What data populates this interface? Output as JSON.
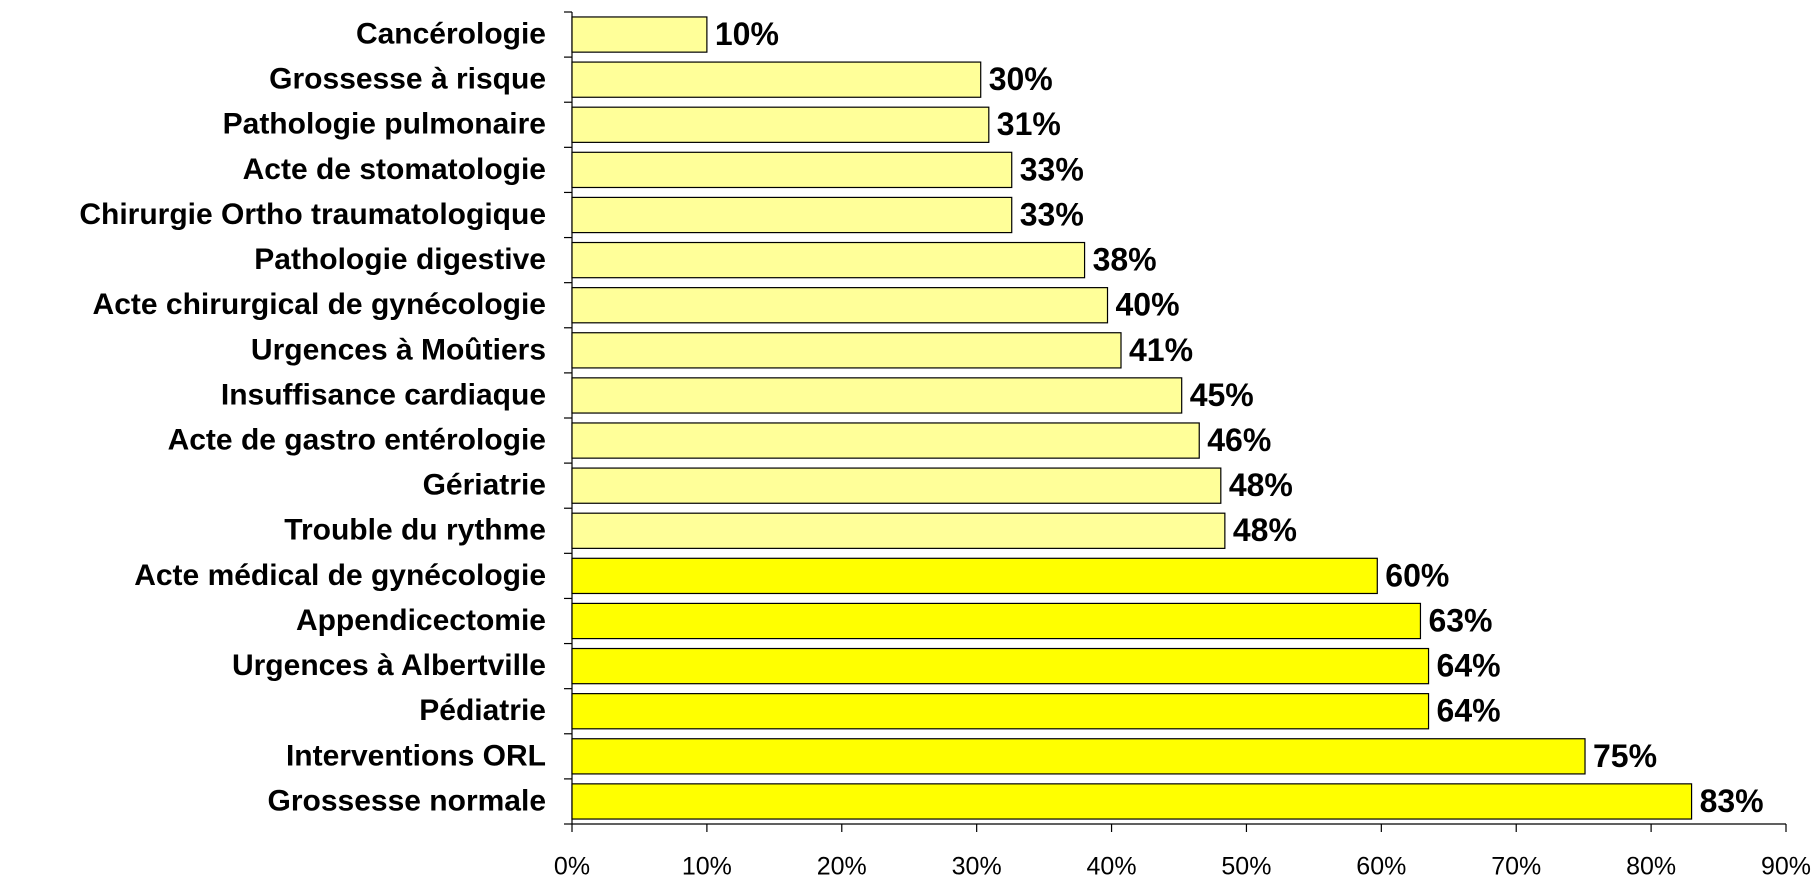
{
  "chart_data": {
    "type": "barh",
    "categories": [
      "Cancérologie",
      "Grossesse à risque",
      "Pathologie pulmonaire",
      "Acte de stomatologie",
      "Chirurgie Ortho traumatologique",
      "Pathologie digestive",
      "Acte chirurgical de gynécologie",
      "Urgences à Moûtiers",
      "Insuffisance cardiaque",
      "Acte de gastro entérologie",
      "Gériatrie",
      "Trouble du rythme",
      "Acte médical de gynécologie",
      "Appendicectomie",
      "Urgences à Albertville",
      "Pédiatrie",
      "Interventions ORL",
      "Grossesse normale"
    ],
    "values": [
      10.0,
      30.3,
      30.9,
      32.6,
      32.6,
      38.0,
      39.7,
      40.7,
      45.2,
      46.5,
      48.1,
      48.4,
      59.7,
      62.9,
      63.5,
      63.5,
      75.1,
      83.0
    ],
    "value_labels": [
      "10%",
      "30%",
      "31%",
      "33%",
      "33%",
      "38%",
      "40%",
      "41%",
      "45%",
      "46%",
      "48%",
      "48%",
      "60%",
      "63%",
      "64%",
      "64%",
      "75%",
      "83%"
    ],
    "colors": [
      "#ffff99",
      "#ffff99",
      "#ffff99",
      "#ffff99",
      "#ffff99",
      "#ffff99",
      "#ffff99",
      "#ffff99",
      "#ffff99",
      "#ffff99",
      "#ffff99",
      "#ffff99",
      "#ffff00",
      "#ffff00",
      "#ffff00",
      "#ffff00",
      "#ffff00",
      "#ffff00"
    ],
    "xlim": [
      0,
      90
    ],
    "xticks": [
      {
        "value": 0,
        "label": "0%"
      },
      {
        "value": 10,
        "label": "10%"
      },
      {
        "value": 20,
        "label": "20%"
      },
      {
        "value": 30,
        "label": "30%"
      },
      {
        "value": 40,
        "label": "40%"
      },
      {
        "value": 50,
        "label": "50%"
      },
      {
        "value": 60,
        "label": "60%"
      },
      {
        "value": 70,
        "label": "70%"
      },
      {
        "value": 80,
        "label": "80%"
      },
      {
        "value": 90,
        "label": "90%"
      }
    ],
    "grid": false
  }
}
